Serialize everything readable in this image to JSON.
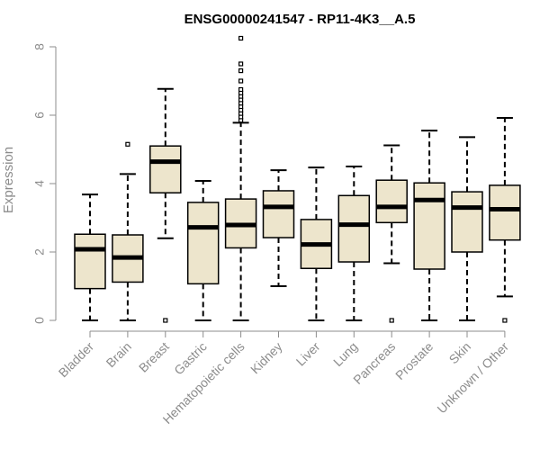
{
  "chart_data": {
    "type": "boxplot",
    "title": "ENSG00000241547 - RP11-4K3__A.5",
    "xlabel": "",
    "ylabel": "Expression",
    "ylim": [
      0,
      8
    ],
    "yticks": [
      0,
      2,
      4,
      6,
      8
    ],
    "categories": [
      "Bladder",
      "Brain",
      "Breast",
      "Gastric",
      "Hematopoietic cells",
      "Kidney",
      "Liver",
      "Lung",
      "Pancreas",
      "Prostate",
      "Skin",
      "Unknown / Other"
    ],
    "boxes": [
      {
        "name": "Bladder",
        "whisker_low": 0,
        "q1": 0.93,
        "median": 2.08,
        "q3": 2.52,
        "whisker_high": 3.68,
        "outliers": []
      },
      {
        "name": "Brain",
        "whisker_low": 0,
        "q1": 1.12,
        "median": 1.84,
        "q3": 2.5,
        "whisker_high": 4.28,
        "outliers": [
          5.15
        ]
      },
      {
        "name": "Breast",
        "whisker_low": 2.4,
        "q1": 3.73,
        "median": 4.64,
        "q3": 5.1,
        "whisker_high": 6.77,
        "outliers": [
          0
        ]
      },
      {
        "name": "Gastric",
        "whisker_low": 0,
        "q1": 1.07,
        "median": 2.72,
        "q3": 3.45,
        "whisker_high": 4.08,
        "outliers": []
      },
      {
        "name": "Hematopoietic cells",
        "whisker_low": 0,
        "q1": 2.12,
        "median": 2.79,
        "q3": 3.55,
        "whisker_high": 5.78,
        "outliers": [
          5.85,
          5.95,
          6.05,
          6.15,
          6.25,
          6.35,
          6.45,
          6.55,
          6.65,
          6.75,
          7.0,
          7.3,
          7.5,
          8.25
        ]
      },
      {
        "name": "Kidney",
        "whisker_low": 1.0,
        "q1": 2.42,
        "median": 3.32,
        "q3": 3.79,
        "whisker_high": 4.39,
        "outliers": []
      },
      {
        "name": "Liver",
        "whisker_low": 0,
        "q1": 1.52,
        "median": 2.22,
        "q3": 2.95,
        "whisker_high": 4.47,
        "outliers": []
      },
      {
        "name": "Lung",
        "whisker_low": 0,
        "q1": 1.71,
        "median": 2.8,
        "q3": 3.65,
        "whisker_high": 4.5,
        "outliers": []
      },
      {
        "name": "Pancreas",
        "whisker_low": 1.67,
        "q1": 2.86,
        "median": 3.32,
        "q3": 4.1,
        "whisker_high": 5.12,
        "outliers": [
          0
        ]
      },
      {
        "name": "Prostate",
        "whisker_low": 0,
        "q1": 1.5,
        "median": 3.52,
        "q3": 4.02,
        "whisker_high": 5.55,
        "outliers": []
      },
      {
        "name": "Skin",
        "whisker_low": 0,
        "q1": 2.0,
        "median": 3.3,
        "q3": 3.76,
        "whisker_high": 5.36,
        "outliers": []
      },
      {
        "name": "Unknown / Other",
        "whisker_low": 0.7,
        "q1": 2.35,
        "median": 3.25,
        "q3": 3.95,
        "whisker_high": 5.92,
        "outliers": [
          0
        ]
      }
    ],
    "colors": {
      "box_fill": "#ede5cc",
      "box_stroke": "#000000",
      "median": "#000000",
      "axis": "#8c8c8c",
      "text": "#8c8c8c"
    },
    "grid": false,
    "legend": "none"
  }
}
